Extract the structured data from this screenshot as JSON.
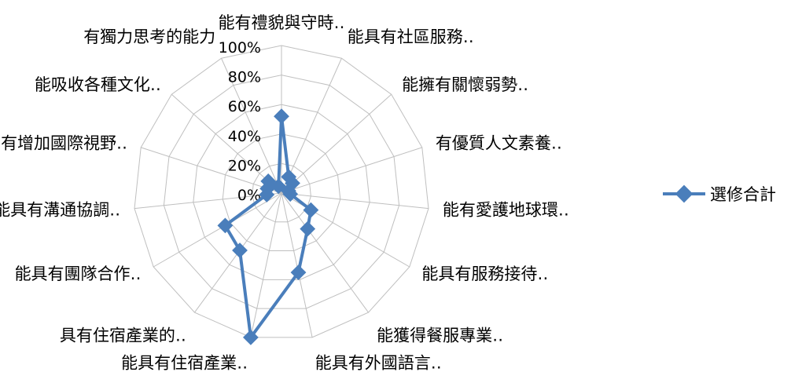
{
  "chart_data": {
    "type": "radar",
    "title": "",
    "categories": [
      "能有禮貌與守時‥",
      "能具有社區服務‥",
      "能擁有關懷弱勢‥",
      "有優質人文素養‥",
      "能有愛護地球環‥",
      "能具有服務接待‥",
      "能獲得餐服專業‥",
      "能具有外國語言‥",
      "能具有住宿產業‥",
      "具有住宿產業的‥",
      "能具有團隊合作‥",
      "能具有溝通協調‥",
      "有增加國際視野‥",
      "能吸收各種文化‥",
      "有獨力思考的能力"
    ],
    "r_ticks": [
      "0%",
      "20%",
      "40%",
      "60%",
      "80%",
      "100%"
    ],
    "r_range": [
      0,
      100
    ],
    "grid": true,
    "legend_position": "right",
    "series": [
      {
        "name": "選修合計",
        "color": "#4A7EBB",
        "values": [
          52,
          12,
          10,
          5,
          6,
          23,
          30,
          55,
          100,
          48,
          44,
          10,
          10,
          12,
          5
        ]
      }
    ]
  }
}
